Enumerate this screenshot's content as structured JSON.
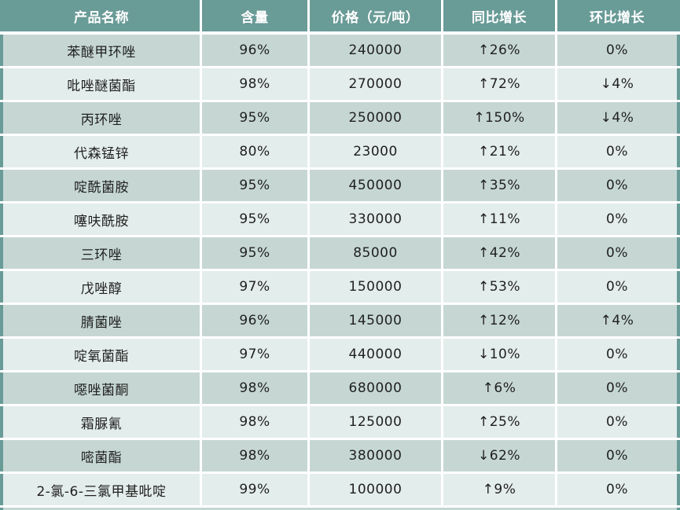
{
  "colors": {
    "header_bg": "#699b97",
    "header_text": "#ffffff",
    "row_dark_bg": "#c6d7d3",
    "row_light_bg": "#e3edeb",
    "side_border": "#699b97",
    "cell_text": "#1f1f1f"
  },
  "chart_data": {
    "type": "table",
    "columns": [
      "产品名称",
      "含量",
      "价格（元/吨）",
      "同比增长",
      "环比增长"
    ],
    "rows": [
      [
        "苯醚甲环唑",
        "96%",
        "240000",
        "↑26%",
        "0%"
      ],
      [
        "吡唑醚菌酯",
        "98%",
        "270000",
        "↑72%",
        "↓4%"
      ],
      [
        "丙环唑",
        "95%",
        "250000",
        "↑150%",
        "↓4%"
      ],
      [
        "代森锰锌",
        "80%",
        "23000",
        "↑21%",
        "0%"
      ],
      [
        "啶酰菌胺",
        "95%",
        "450000",
        "↑35%",
        "0%"
      ],
      [
        "噻呋酰胺",
        "95%",
        "330000",
        "↑11%",
        "0%"
      ],
      [
        "三环唑",
        "95%",
        "85000",
        "↑42%",
        "0%"
      ],
      [
        "戊唑醇",
        "97%",
        "150000",
        "↑53%",
        "0%"
      ],
      [
        "腈菌唑",
        "96%",
        "145000",
        "↑12%",
        "↑4%"
      ],
      [
        "啶氧菌酯",
        "97%",
        "440000",
        "↓10%",
        "0%"
      ],
      [
        "噁唑菌酮",
        "98%",
        "680000",
        "↑6%",
        "0%"
      ],
      [
        "霜脲氰",
        "98%",
        "125000",
        "↑25%",
        "0%"
      ],
      [
        "嘧菌酯",
        "98%",
        "380000",
        "↓62%",
        "0%"
      ],
      [
        "2-氯-6-三氯甲基吡啶",
        "99%",
        "100000",
        "↑9%",
        "0%"
      ]
    ]
  }
}
